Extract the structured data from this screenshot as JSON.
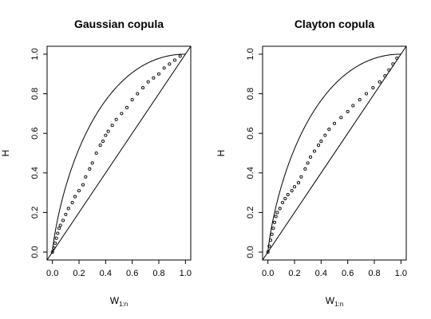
{
  "chart_data": [
    {
      "type": "scatter",
      "title": "Gaussian copula",
      "xlabel_main": "W",
      "xlabel_sub": "1:n",
      "ylabel": "H",
      "xlim": [
        0,
        1
      ],
      "ylim": [
        0,
        1
      ],
      "x_ticks": [
        0.0,
        0.2,
        0.4,
        0.6,
        0.8,
        1.0
      ],
      "y_ticks": [
        0.0,
        0.2,
        0.4,
        0.6,
        0.8,
        1.0
      ],
      "x_tick_labels": [
        "0.0",
        "0.2",
        "0.4",
        "0.6",
        "0.8",
        "1.0"
      ],
      "y_tick_labels": [
        "0.0",
        "0.2",
        "0.4",
        "0.6",
        "0.8",
        "1.0"
      ],
      "reference_curves": [
        "diagonal",
        "upper-bound"
      ],
      "series": [
        {
          "points": [
            [
              0.0,
              0.0
            ],
            [
              0.01,
              0.02
            ],
            [
              0.02,
              0.045
            ],
            [
              0.03,
              0.07
            ],
            [
              0.04,
              0.095
            ],
            [
              0.05,
              0.12
            ],
            [
              0.06,
              0.135
            ],
            [
              0.08,
              0.16
            ],
            [
              0.1,
              0.19
            ],
            [
              0.12,
              0.22
            ],
            [
              0.15,
              0.25
            ],
            [
              0.17,
              0.28
            ],
            [
              0.2,
              0.31
            ],
            [
              0.23,
              0.34
            ],
            [
              0.25,
              0.38
            ],
            [
              0.28,
              0.42
            ],
            [
              0.3,
              0.45
            ],
            [
              0.33,
              0.5
            ],
            [
              0.36,
              0.54
            ],
            [
              0.38,
              0.56
            ],
            [
              0.4,
              0.59
            ],
            [
              0.42,
              0.61
            ],
            [
              0.45,
              0.64
            ],
            [
              0.48,
              0.67
            ],
            [
              0.52,
              0.7
            ],
            [
              0.56,
              0.73
            ],
            [
              0.6,
              0.77
            ],
            [
              0.64,
              0.8
            ],
            [
              0.68,
              0.83
            ],
            [
              0.72,
              0.86
            ],
            [
              0.76,
              0.88
            ],
            [
              0.8,
              0.9
            ],
            [
              0.84,
              0.93
            ],
            [
              0.88,
              0.95
            ],
            [
              0.92,
              0.97
            ],
            [
              0.96,
              0.99
            ]
          ]
        }
      ]
    },
    {
      "type": "scatter",
      "title": "Clayton copula",
      "xlabel_main": "W",
      "xlabel_sub": "1:n",
      "ylabel": "H",
      "xlim": [
        0,
        1
      ],
      "ylim": [
        0,
        1
      ],
      "x_ticks": [
        0.0,
        0.2,
        0.4,
        0.6,
        0.8,
        1.0
      ],
      "y_ticks": [
        0.0,
        0.2,
        0.4,
        0.6,
        0.8,
        1.0
      ],
      "x_tick_labels": [
        "0.0",
        "0.2",
        "0.4",
        "0.6",
        "0.8",
        "1.0"
      ],
      "y_tick_labels": [
        "0.0",
        "0.2",
        "0.4",
        "0.6",
        "0.8",
        "1.0"
      ],
      "reference_curves": [
        "diagonal",
        "upper-bound"
      ],
      "series": [
        {
          "points": [
            [
              0.0,
              0.0
            ],
            [
              0.01,
              0.03
            ],
            [
              0.02,
              0.06
            ],
            [
              0.03,
              0.09
            ],
            [
              0.04,
              0.12
            ],
            [
              0.05,
              0.15
            ],
            [
              0.06,
              0.18
            ],
            [
              0.07,
              0.2
            ],
            [
              0.09,
              0.22
            ],
            [
              0.11,
              0.25
            ],
            [
              0.13,
              0.27
            ],
            [
              0.15,
              0.29
            ],
            [
              0.18,
              0.31
            ],
            [
              0.2,
              0.33
            ],
            [
              0.23,
              0.35
            ],
            [
              0.25,
              0.38
            ],
            [
              0.28,
              0.42
            ],
            [
              0.3,
              0.45
            ],
            [
              0.32,
              0.48
            ],
            [
              0.35,
              0.51
            ],
            [
              0.38,
              0.54
            ],
            [
              0.4,
              0.56
            ],
            [
              0.43,
              0.59
            ],
            [
              0.46,
              0.62
            ],
            [
              0.5,
              0.65
            ],
            [
              0.55,
              0.68
            ],
            [
              0.6,
              0.71
            ],
            [
              0.64,
              0.74
            ],
            [
              0.69,
              0.77
            ],
            [
              0.74,
              0.8
            ],
            [
              0.79,
              0.83
            ],
            [
              0.84,
              0.86
            ],
            [
              0.88,
              0.89
            ],
            [
              0.91,
              0.92
            ],
            [
              0.94,
              0.95
            ],
            [
              0.97,
              0.98
            ]
          ]
        }
      ]
    }
  ]
}
